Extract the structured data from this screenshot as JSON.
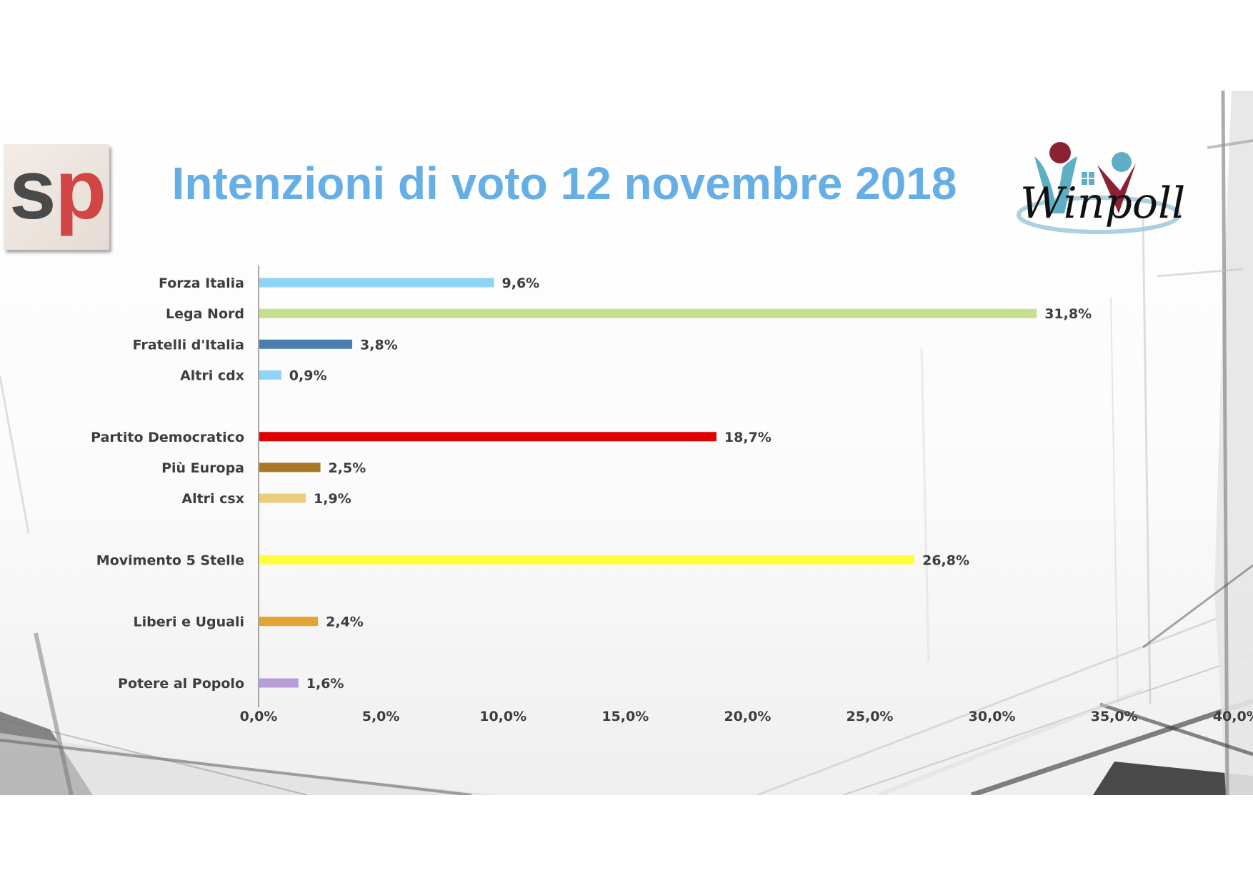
{
  "title": "Intenzioni di voto 12 novembre 2018",
  "logos": {
    "left": {
      "name": "sp",
      "letters": [
        "s",
        "p"
      ],
      "colors": [
        "#4a4a4a",
        "#d24545"
      ]
    },
    "right": {
      "name": "winpoll",
      "text": "Winpoll"
    }
  },
  "chart_data": {
    "type": "bar",
    "orientation": "horizontal",
    "title": "Intenzioni di voto 12 novembre 2018",
    "xlabel": "",
    "ylabel": "",
    "xlim": [
      0,
      40
    ],
    "xticks": [
      0,
      5,
      10,
      15,
      20,
      25,
      30,
      35,
      40
    ],
    "xtick_labels": [
      "0,0%",
      "5,0%",
      "10,0%",
      "15,0%",
      "20,0%",
      "25,0%",
      "30,0%",
      "35,0%",
      "40,0%"
    ],
    "grid": false,
    "legend": "none",
    "categories": [
      "Forza Italia",
      "Lega Nord",
      "Fratelli d'Italia",
      "Altri cdx",
      "",
      "Partito Democratico",
      "Più Europa",
      "Altri csx",
      "",
      "Movimento 5 Stelle",
      "",
      "Liberi e Uguali",
      "",
      "Potere al Popolo"
    ],
    "values": [
      9.6,
      31.8,
      3.8,
      0.9,
      null,
      18.7,
      2.5,
      1.9,
      null,
      26.8,
      null,
      2.4,
      null,
      1.6
    ],
    "value_labels": [
      "9,6%",
      "31,8%",
      "3,8%",
      "0,9%",
      "",
      "18,7%",
      "2,5%",
      "1,9%",
      "",
      "26,8%",
      "",
      "2,4%",
      "",
      "1,6%"
    ],
    "colors": [
      "#8fd3f7",
      "#c6df8f",
      "#4a7eaf",
      "#8fd3f7",
      "",
      "#e00000",
      "#a87824",
      "#ebcd7c",
      "",
      "#ffff40",
      "",
      "#e2a432",
      "",
      "#b89ed6"
    ]
  }
}
